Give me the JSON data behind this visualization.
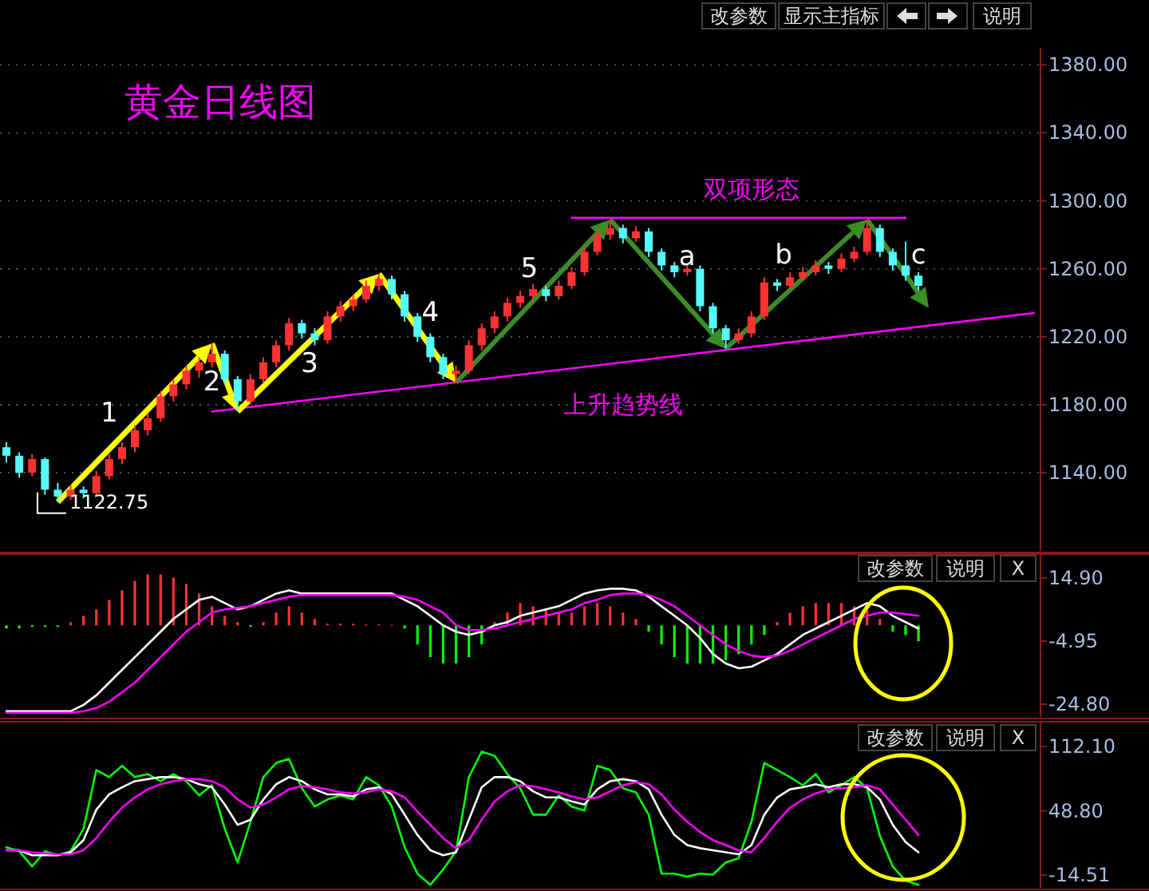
{
  "chart_data": [
    {
      "type": "candlestick",
      "title": "黄金日线图",
      "categories": [
        null,
        null,
        null,
        null,
        null,
        null,
        null,
        null,
        null,
        null,
        null,
        null,
        null,
        null,
        null,
        null,
        null,
        null,
        null,
        null,
        null,
        null,
        null,
        null,
        null,
        null,
        null,
        null,
        null,
        null,
        null,
        null,
        null,
        null,
        null,
        null,
        null,
        null,
        null,
        null,
        null,
        null,
        null,
        null,
        null,
        null,
        null,
        null,
        null,
        null,
        null,
        null,
        null,
        null,
        null,
        null,
        null,
        null,
        null,
        null,
        null,
        null,
        null,
        null,
        null,
        null,
        null,
        null,
        null,
        null,
        null,
        null,
        null,
        null,
        null,
        null,
        null,
        null,
        null,
        null,
        null
      ],
      "ohlc": [
        [
          1155,
          1158,
          1146,
          1150
        ],
        [
          1150,
          1152,
          1137,
          1140
        ],
        [
          1140,
          1151,
          1138,
          1148
        ],
        [
          1148,
          1149,
          1127,
          1130
        ],
        [
          1130,
          1134,
          1122.75,
          1126
        ],
        [
          1126,
          1133,
          1124,
          1130
        ],
        [
          1130,
          1132,
          1125,
          1128
        ],
        [
          1128,
          1141,
          1126,
          1138
        ],
        [
          1138,
          1151,
          1136,
          1148
        ],
        [
          1148,
          1158,
          1145,
          1155
        ],
        [
          1155,
          1168,
          1152,
          1165
        ],
        [
          1165,
          1175,
          1162,
          1172
        ],
        [
          1172,
          1188,
          1170,
          1185
        ],
        [
          1185,
          1195,
          1182,
          1192
        ],
        [
          1192,
          1203,
          1189,
          1200
        ],
        [
          1200,
          1208,
          1196,
          1205
        ],
        [
          1205,
          1216,
          1202,
          1210
        ],
        [
          1210,
          1212,
          1192,
          1195
        ],
        [
          1195,
          1197,
          1176,
          1182
        ],
        [
          1182,
          1198,
          1180,
          1195
        ],
        [
          1195,
          1208,
          1193,
          1205
        ],
        [
          1205,
          1218,
          1202,
          1215
        ],
        [
          1215,
          1231,
          1212,
          1228
        ],
        [
          1228,
          1230,
          1219,
          1222
        ],
        [
          1222,
          1225,
          1215,
          1218
        ],
        [
          1218,
          1235,
          1216,
          1232
        ],
        [
          1232,
          1241,
          1229,
          1238
        ],
        [
          1238,
          1245,
          1235,
          1242
        ],
        [
          1242,
          1253,
          1240,
          1250
        ],
        [
          1250,
          1257,
          1247,
          1254
        ],
        [
          1254,
          1256,
          1242,
          1245
        ],
        [
          1245,
          1247,
          1229,
          1232
        ],
        [
          1232,
          1234,
          1217,
          1220
        ],
        [
          1220,
          1222,
          1205,
          1208
        ],
        [
          1208,
          1210,
          1195,
          1198
        ],
        [
          1198,
          1203,
          1193,
          1200
        ],
        [
          1200,
          1218,
          1198,
          1215
        ],
        [
          1215,
          1228,
          1212,
          1225
        ],
        [
          1225,
          1235,
          1222,
          1232
        ],
        [
          1232,
          1243,
          1229,
          1240
        ],
        [
          1240,
          1247,
          1237,
          1244
        ],
        [
          1244,
          1251,
          1241,
          1248
        ],
        [
          1248,
          1250,
          1241,
          1244
        ],
        [
          1244,
          1253,
          1242,
          1250
        ],
        [
          1250,
          1261,
          1248,
          1258
        ],
        [
          1258,
          1273,
          1256,
          1270
        ],
        [
          1270,
          1283,
          1268,
          1280
        ],
        [
          1280,
          1289,
          1277,
          1284
        ],
        [
          1284,
          1286,
          1275,
          1278
        ],
        [
          1278,
          1285,
          1276,
          1282
        ],
        [
          1282,
          1284,
          1267,
          1270
        ],
        [
          1270,
          1272,
          1259,
          1262
        ],
        [
          1262,
          1264,
          1255,
          1258
        ],
        [
          1258,
          1263,
          1256,
          1260
        ],
        [
          1260,
          1262,
          1235,
          1238
        ],
        [
          1238,
          1240,
          1222,
          1225
        ],
        [
          1225,
          1227,
          1213,
          1218
        ],
        [
          1218,
          1225,
          1216,
          1222
        ],
        [
          1222,
          1235,
          1220,
          1232
        ],
        [
          1232,
          1255,
          1230,
          1252
        ],
        [
          1252,
          1254,
          1247,
          1250
        ],
        [
          1250,
          1258,
          1248,
          1255
        ],
        [
          1255,
          1261,
          1253,
          1258
        ],
        [
          1258,
          1265,
          1256,
          1262
        ],
        [
          1262,
          1264,
          1257,
          1260
        ],
        [
          1260,
          1269,
          1258,
          1266
        ],
        [
          1266,
          1273,
          1264,
          1270
        ],
        [
          1270,
          1289,
          1268,
          1284
        ],
        [
          1284,
          1286,
          1267,
          1270
        ],
        [
          1270,
          1272,
          1259,
          1262
        ],
        [
          1262,
          1276,
          1253,
          1256
        ],
        [
          1256,
          1258,
          1247,
          1250
        ],
        null,
        null,
        null,
        null,
        null,
        null,
        null,
        null,
        null
      ],
      "colors": [
        "#54fcfc",
        "#54fcfc",
        "#ff3232",
        "#54fcfc",
        "#54fcfc",
        "#ff3232",
        "#54fcfc",
        "#ff3232",
        "#ff3232",
        "#ff3232",
        "#ff3232",
        "#ff3232",
        "#ff3232",
        "#ff3232",
        "#ff3232",
        "#ff3232",
        "#ff3232",
        "#54fcfc",
        "#54fcfc",
        "#ff3232",
        "#ff3232",
        "#ff3232",
        "#ff3232",
        "#54fcfc",
        "#54fcfc",
        "#ff3232",
        "#ff3232",
        "#ff3232",
        "#ff3232",
        "#ff3232",
        "#54fcfc",
        "#54fcfc",
        "#54fcfc",
        "#54fcfc",
        "#54fcfc",
        "#ff3232",
        "#ff3232",
        "#ff3232",
        "#ff3232",
        "#ff3232",
        "#ff3232",
        "#ff3232",
        "#54fcfc",
        "#ff3232",
        "#ff3232",
        "#ff3232",
        "#ff3232",
        "#ff3232",
        "#54fcfc",
        "#ff3232",
        "#54fcfc",
        "#54fcfc",
        "#54fcfc",
        "#ff3232",
        "#54fcfc",
        "#54fcfc",
        "#54fcfc",
        "#ff3232",
        "#ff3232",
        "#ff3232",
        "#54fcfc",
        "#ff3232",
        "#ff3232",
        "#ff3232",
        "#54fcfc",
        "#ff3232",
        "#ff3232",
        "#ff3232",
        "#54fcfc",
        "#54fcfc",
        "#54fcfc",
        "#54fcfc",
        null,
        null,
        null,
        null,
        null,
        null,
        null,
        null,
        null
      ],
      "series": [
        {
          "type": "line",
          "values": [
            null,
            null,
            null,
            null,
            null,
            null,
            null,
            null,
            null,
            null,
            null,
            null,
            null,
            null,
            null,
            null,
            null,
            null,
            null,
            null,
            null,
            null,
            null,
            null,
            null,
            null,
            null,
            null,
            null,
            null,
            null,
            null,
            null,
            null,
            null,
            null,
            null,
            null,
            null,
            null,
            null,
            null,
            null,
            null,
            1290,
            null,
            null,
            null,
            null,
            null,
            null,
            null,
            null,
            null,
            null,
            null,
            null,
            null,
            null,
            null,
            null,
            null,
            null,
            null,
            null,
            null,
            null,
            null,
            null,
            null,
            1290,
            null,
            null,
            null,
            null,
            null,
            null,
            null,
            null,
            null,
            null
          ],
          "color": "#ff00ff"
        },
        {
          "type": "line",
          "values": [
            null,
            null,
            null,
            null,
            null,
            null,
            null,
            null,
            null,
            null,
            null,
            null,
            null,
            null,
            null,
            null,
            1176,
            null,
            null,
            null,
            null,
            null,
            null,
            null,
            null,
            null,
            null,
            null,
            null,
            null,
            null,
            null,
            null,
            null,
            null,
            null,
            null,
            null,
            null,
            null,
            null,
            null,
            null,
            null,
            null,
            null,
            null,
            null,
            null,
            null,
            null,
            null,
            null,
            null,
            null,
            null,
            null,
            null,
            null,
            null,
            null,
            null,
            null,
            null,
            null,
            null,
            null,
            null,
            null,
            null,
            null,
            null,
            null,
            null,
            null,
            null,
            null,
            null,
            null,
            null,
            1234
          ],
          "color": "#ff00ff"
        }
      ],
      "ylim": [
        1094,
        1390
      ],
      "yticks": [
        {
          "value": 1140,
          "label": "1140.00"
        },
        {
          "value": 1180,
          "label": "1180.00"
        },
        {
          "value": 1220,
          "label": "1220.00"
        },
        {
          "value": 1260,
          "label": "1260.00"
        },
        {
          "value": 1300,
          "label": "1300.00"
        },
        {
          "value": 1340,
          "label": "1340.00"
        },
        {
          "value": 1380,
          "label": "1380.00"
        }
      ],
      "grid": "y",
      "tick_labels": "y",
      "annotations": [
        "1",
        "2",
        "3",
        "4",
        "5",
        "a",
        "b",
        "c",
        "双项形态",
        "上升趋势线",
        "1122.75",
        "改参数",
        "显示主指标",
        "说明"
      ]
    },
    {
      "type": "bar",
      "categories": [
        null,
        null,
        null,
        null,
        null,
        null,
        null,
        null,
        null,
        null,
        null,
        null,
        null,
        null,
        null,
        null,
        null,
        null,
        null,
        null,
        null,
        null,
        null,
        null,
        null,
        null,
        null,
        null,
        null,
        null,
        null,
        null,
        null,
        null,
        null,
        null,
        null,
        null,
        null,
        null,
        null,
        null,
        null,
        null,
        null,
        null,
        null,
        null,
        null,
        null,
        null,
        null,
        null,
        null,
        null,
        null,
        null,
        null,
        null,
        null,
        null,
        null,
        null,
        null,
        null,
        null,
        null,
        null,
        null,
        null,
        null,
        null
      ],
      "series": [
        {
          "type": "bar",
          "values": [
            -1,
            -1,
            -0.5,
            -0.5,
            -0.5,
            1,
            3,
            5,
            8,
            11,
            14,
            16,
            16,
            15,
            13,
            10,
            6,
            3,
            1,
            -0.5,
            1,
            4,
            6,
            4,
            2,
            0.5,
            0.5,
            0.5,
            0.3,
            0.3,
            0.2,
            -1,
            -6,
            -10,
            -12,
            -12,
            -10,
            -6,
            1,
            4,
            7,
            6,
            5,
            4,
            4,
            6,
            7,
            6,
            4,
            2,
            -2,
            -6,
            -10,
            -12,
            -12,
            -12,
            -11,
            -9,
            -6,
            -3,
            1,
            4,
            6,
            7,
            7,
            7,
            6,
            5,
            2,
            -2,
            -3,
            -5
          ],
          "colors": [
            "#00ff00",
            "#00ff00",
            "#00ff00",
            "#00ff00",
            "#00ff00",
            "#ff3232",
            "#ff3232",
            "#ff3232",
            "#ff3232",
            "#ff3232",
            "#ff3232",
            "#ff3232",
            "#ff3232",
            "#ff3232",
            "#ff3232",
            "#ff3232",
            "#ff3232",
            "#ff3232",
            "#ff3232",
            "#00ff00",
            "#ff3232",
            "#ff3232",
            "#ff3232",
            "#ff3232",
            "#ff3232",
            "#ff3232",
            "#ff3232",
            "#ff3232",
            "#ff3232",
            "#ff3232",
            "#ff3232",
            "#00ff00",
            "#00ff00",
            "#00ff00",
            "#00ff00",
            "#00ff00",
            "#00ff00",
            "#00ff00",
            "#ff3232",
            "#ff3232",
            "#ff3232",
            "#ff3232",
            "#ff3232",
            "#ff3232",
            "#ff3232",
            "#ff3232",
            "#ff3232",
            "#ff3232",
            "#ff3232",
            "#ff3232",
            "#00ff00",
            "#00ff00",
            "#00ff00",
            "#00ff00",
            "#00ff00",
            "#00ff00",
            "#00ff00",
            "#00ff00",
            "#00ff00",
            "#00ff00",
            "#ff3232",
            "#ff3232",
            "#ff3232",
            "#ff3232",
            "#ff3232",
            "#ff3232",
            "#ff3232",
            "#ff3232",
            "#ff3232",
            "#00ff00",
            "#00ff00",
            "#00ff00"
          ]
        },
        {
          "type": "line",
          "color": "#ffffff",
          "values": [
            -27,
            -27,
            -27,
            -27,
            -27,
            -27,
            -25,
            -22,
            -18,
            -14,
            -10,
            -6,
            -2,
            2,
            5,
            8,
            9,
            7,
            5,
            6,
            8,
            10,
            11,
            10,
            10,
            10,
            10,
            10,
            10,
            10,
            10,
            8,
            6,
            3,
            0,
            -2,
            -3,
            -2,
            0,
            1,
            3,
            4,
            5,
            6,
            8,
            10,
            11,
            11.5,
            11.5,
            11,
            9,
            6,
            3,
            0,
            -4,
            -9,
            -12,
            -13.5,
            -13,
            -11,
            -9,
            -6,
            -3,
            -1,
            1,
            3,
            5,
            7,
            6,
            3,
            1,
            -1
          ]
        },
        {
          "type": "line",
          "color": "#ff00ff",
          "values": [
            -27.5,
            -27.5,
            -27.5,
            -27.5,
            -27.5,
            -27.5,
            -27,
            -26,
            -24,
            -21,
            -18,
            -14,
            -10,
            -6,
            -2,
            1,
            4,
            5,
            5.5,
            6,
            7,
            8,
            9,
            9.5,
            9.5,
            9.5,
            9.5,
            9.5,
            9.5,
            9.5,
            9.5,
            9,
            8,
            6,
            4,
            0,
            -1.5,
            -1.5,
            -1,
            0,
            1,
            2,
            3,
            4,
            5,
            7,
            8,
            9.5,
            10,
            10,
            9.5,
            8,
            6,
            3,
            0,
            -3,
            -6,
            -8,
            -9.5,
            -10,
            -9.5,
            -8,
            -6,
            -4,
            -2,
            0,
            2,
            3,
            4,
            4,
            3.5,
            3
          ]
        }
      ],
      "ylim": [
        -28.8,
        22.4
      ],
      "yticks": [
        {
          "value": 14.9,
          "label": "14.90"
        },
        {
          "value": -4.95,
          "label": "-4.95"
        },
        {
          "value": -24.8,
          "label": "-24.80"
        }
      ],
      "tick_labels": "y",
      "annotations": [
        "改参数",
        "说明",
        "X"
      ]
    },
    {
      "type": "line",
      "categories": [
        null,
        null,
        null,
        null,
        null,
        null,
        null,
        null,
        null,
        null,
        null,
        null,
        null,
        null,
        null,
        null,
        null,
        null,
        null,
        null,
        null,
        null,
        null,
        null,
        null,
        null,
        null,
        null,
        null,
        null,
        null,
        null,
        null,
        null,
        null,
        null,
        null,
        null,
        null,
        null,
        null,
        null,
        null,
        null,
        null,
        null,
        null,
        null,
        null,
        null,
        null,
        null,
        null,
        null,
        null,
        null,
        null,
        null,
        null,
        null,
        null,
        null,
        null,
        null,
        null,
        null,
        null,
        null,
        null,
        null,
        null,
        null
      ],
      "series": [
        {
          "color": "#00ff00",
          "values": [
            13,
            9,
            -6,
            9,
            5,
            9,
            31,
            89,
            82,
            93,
            82,
            85,
            78,
            85,
            78,
            64,
            74,
            31,
            -2,
            38,
            82,
            96,
            100,
            71,
            53,
            60,
            64,
            60,
            82,
            74,
            53,
            13,
            -13,
            -24,
            -9,
            9,
            82,
            107,
            103,
            85,
            71,
            45,
            45,
            64,
            53,
            49,
            93,
            89,
            71,
            67,
            45,
            -13,
            -13,
            -16,
            -13,
            -14,
            -2,
            2,
            38,
            96,
            89,
            82,
            74,
            85,
            67,
            74,
            82,
            71,
            24,
            -6,
            -20,
            -24
          ]
        },
        {
          "color": "#ffffff",
          "values": [
            10,
            10,
            5,
            5,
            5,
            8,
            20,
            50,
            65,
            72,
            78,
            80,
            82,
            82,
            80,
            75,
            72,
            55,
            35,
            40,
            60,
            75,
            82,
            78,
            70,
            65,
            65,
            63,
            70,
            72,
            65,
            45,
            25,
            10,
            5,
            8,
            40,
            72,
            82,
            82,
            78,
            68,
            62,
            62,
            58,
            55,
            70,
            78,
            80,
            78,
            70,
            45,
            25,
            15,
            12,
            10,
            8,
            6,
            15,
            45,
            62,
            70,
            72,
            75,
            72,
            75,
            75,
            72,
            60,
            35,
            18,
            8
          ]
        },
        {
          "color": "#ff00ff",
          "values": [
            10,
            10,
            8,
            7,
            6,
            6,
            10,
            22,
            38,
            52,
            62,
            70,
            75,
            78,
            80,
            80,
            78,
            72,
            60,
            52,
            55,
            62,
            70,
            73,
            72,
            70,
            67,
            66,
            67,
            70,
            68,
            62,
            48,
            35,
            22,
            12,
            20,
            40,
            58,
            68,
            74,
            73,
            70,
            67,
            63,
            60,
            62,
            68,
            74,
            77,
            75,
            65,
            50,
            38,
            28,
            20,
            15,
            10,
            8,
            22,
            38,
            52,
            60,
            66,
            70,
            71,
            72,
            74,
            70,
            55,
            40,
            25
          ]
        }
      ],
      "ylim": [
        -27,
        136.5
      ],
      "yticks": [
        {
          "value": 112.1,
          "label": "112.10"
        },
        {
          "value": 48.8,
          "label": "48.80"
        },
        {
          "value": -14.51,
          "label": "-14.51"
        }
      ],
      "tick_labels": "y",
      "annotations": [
        "改参数",
        "说明",
        "X"
      ]
    }
  ]
}
